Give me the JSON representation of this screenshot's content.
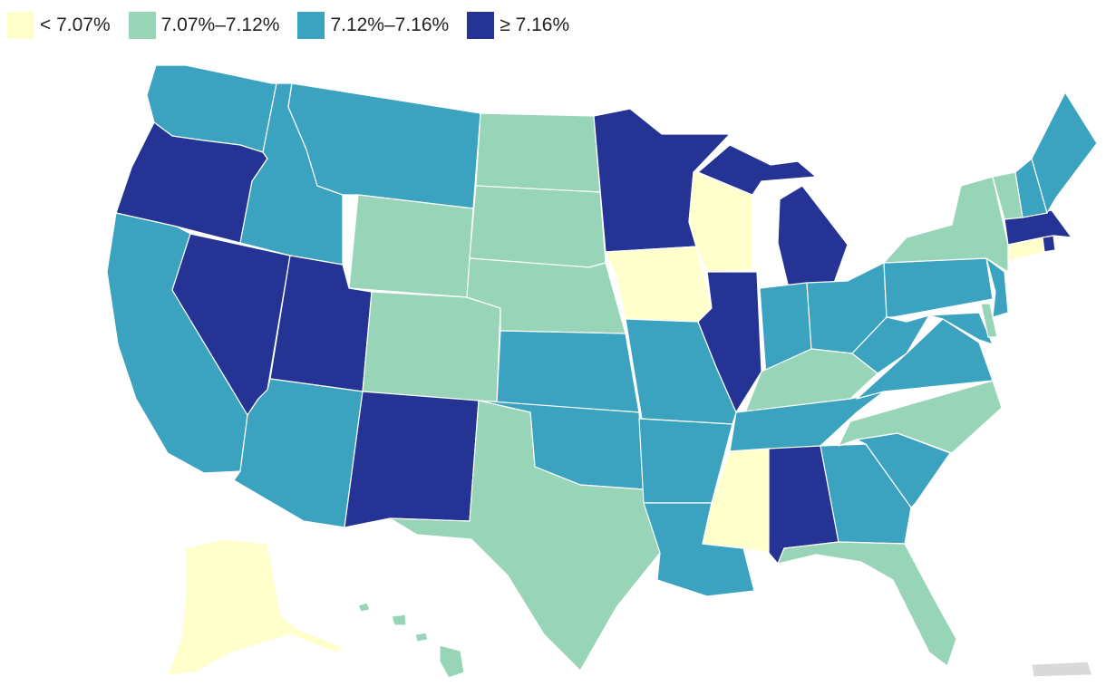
{
  "colors": {
    "lt_707": "#ffffcc",
    "707_712": "#98d4b8",
    "712_716": "#3ba2c0",
    "ge_716": "#253494",
    "no_data": "#d9d9d9"
  },
  "legend": [
    {
      "label": "< 7.07%",
      "color": "#ffffcc"
    },
    {
      "label": "7.07%–7.12%",
      "color": "#98d4b8"
    },
    {
      "label": "7.12%–7.16%",
      "color": "#3ba2c0"
    },
    {
      "label": "≥ 7.16%",
      "color": "#253494"
    }
  ],
  "states": [
    {
      "name": "Washington",
      "bin": "7.12%–7.16%"
    },
    {
      "name": "Oregon",
      "bin": "≥ 7.16%"
    },
    {
      "name": "California",
      "bin": "7.12%–7.16%"
    },
    {
      "name": "Nevada",
      "bin": "≥ 7.16%"
    },
    {
      "name": "Idaho",
      "bin": "7.12%–7.16%"
    },
    {
      "name": "Montana",
      "bin": "7.12%–7.16%"
    },
    {
      "name": "Wyoming",
      "bin": "7.07%–7.12%"
    },
    {
      "name": "Utah",
      "bin": "≥ 7.16%"
    },
    {
      "name": "Arizona",
      "bin": "7.12%–7.16%"
    },
    {
      "name": "Colorado",
      "bin": "7.07%–7.12%"
    },
    {
      "name": "New Mexico",
      "bin": "≥ 7.16%"
    },
    {
      "name": "North Dakota",
      "bin": "7.07%–7.12%"
    },
    {
      "name": "South Dakota",
      "bin": "7.07%–7.12%"
    },
    {
      "name": "Nebraska",
      "bin": "7.07%–7.12%"
    },
    {
      "name": "Kansas",
      "bin": "7.12%–7.16%"
    },
    {
      "name": "Oklahoma",
      "bin": "7.12%–7.16%"
    },
    {
      "name": "Texas",
      "bin": "7.07%–7.12%"
    },
    {
      "name": "Minnesota",
      "bin": "≥ 7.16%"
    },
    {
      "name": "Iowa",
      "bin": "< 7.07%"
    },
    {
      "name": "Missouri",
      "bin": "7.12%–7.16%"
    },
    {
      "name": "Arkansas",
      "bin": "7.12%–7.16%"
    },
    {
      "name": "Louisiana",
      "bin": "7.12%–7.16%"
    },
    {
      "name": "Wisconsin",
      "bin": "< 7.07%"
    },
    {
      "name": "Illinois",
      "bin": "≥ 7.16%"
    },
    {
      "name": "Michigan",
      "bin": "≥ 7.16%"
    },
    {
      "name": "Indiana",
      "bin": "7.12%–7.16%"
    },
    {
      "name": "Ohio",
      "bin": "7.12%–7.16%"
    },
    {
      "name": "Kentucky",
      "bin": "7.07%–7.12%"
    },
    {
      "name": "Tennessee",
      "bin": "7.12%–7.16%"
    },
    {
      "name": "Mississippi",
      "bin": "< 7.07%"
    },
    {
      "name": "Alabama",
      "bin": "≥ 7.16%"
    },
    {
      "name": "Georgia",
      "bin": "7.12%–7.16%"
    },
    {
      "name": "Florida",
      "bin": "7.07%–7.12%"
    },
    {
      "name": "South Carolina",
      "bin": "7.12%–7.16%"
    },
    {
      "name": "North Carolina",
      "bin": "7.07%–7.12%"
    },
    {
      "name": "Virginia",
      "bin": "7.12%–7.16%"
    },
    {
      "name": "West Virginia",
      "bin": "7.12%–7.16%"
    },
    {
      "name": "Maryland",
      "bin": "7.12%–7.16%"
    },
    {
      "name": "Delaware",
      "bin": "7.07%–7.12%"
    },
    {
      "name": "Pennsylvania",
      "bin": "7.12%–7.16%"
    },
    {
      "name": "New Jersey",
      "bin": "7.12%–7.16%"
    },
    {
      "name": "New York",
      "bin": "7.07%–7.12%"
    },
    {
      "name": "Connecticut",
      "bin": "< 7.07%"
    },
    {
      "name": "Rhode Island",
      "bin": "≥ 7.16%"
    },
    {
      "name": "Massachusetts",
      "bin": "≥ 7.16%"
    },
    {
      "name": "Vermont",
      "bin": "7.07%–7.12%"
    },
    {
      "name": "New Hampshire",
      "bin": "7.12%–7.16%"
    },
    {
      "name": "Maine",
      "bin": "7.12%–7.16%"
    },
    {
      "name": "Alaska",
      "bin": "< 7.07%"
    },
    {
      "name": "Hawaii",
      "bin": "7.07%–7.12%"
    },
    {
      "name": "Puerto Rico",
      "bin": "no data"
    }
  ]
}
